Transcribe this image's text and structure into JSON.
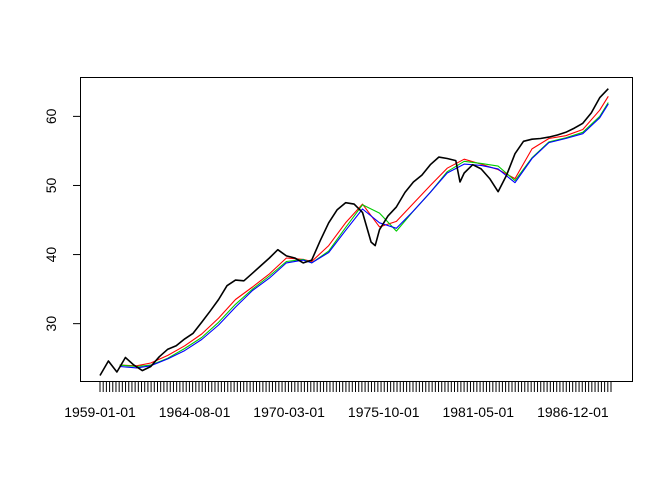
{
  "chart_data": {
    "type": "line",
    "title": "",
    "xlabel": "",
    "ylabel": "",
    "x_tick_labels": [
      "1959-01-01",
      "1964-08-01",
      "1970-03-01",
      "1975-10-01",
      "1981-05-01",
      "1986-12-01"
    ],
    "x_tick_dates": [
      "1959-01-01",
      "1964-08-01",
      "1970-03-01",
      "1975-10-01",
      "1981-05-01",
      "1986-12-01"
    ],
    "x_range": [
      "1959-01-01",
      "1989-03-01"
    ],
    "y_tick_labels": [
      "30",
      "40",
      "50",
      "60"
    ],
    "y_ticks": [
      30,
      40,
      50,
      60
    ],
    "ylim": [
      21.7,
      65.7
    ],
    "grid": false,
    "legend": "none",
    "series": [
      {
        "color": "#000000",
        "x": [
          "1959-01-01",
          "1959-07-01",
          "1960-01-01",
          "1960-07-01",
          "1961-01-01",
          "1961-07-01",
          "1962-01-01",
          "1962-07-01",
          "1963-01-01",
          "1963-07-01",
          "1964-01-01",
          "1964-07-01",
          "1965-01-01",
          "1965-07-01",
          "1966-01-01",
          "1966-07-01",
          "1967-01-01",
          "1967-07-01",
          "1968-01-01",
          "1968-07-01",
          "1969-01-01",
          "1969-07-01",
          "1970-01-01",
          "1970-07-01",
          "1971-01-01",
          "1971-07-01",
          "1972-01-01",
          "1972-07-01",
          "1973-01-01",
          "1973-07-01",
          "1974-01-01",
          "1974-07-01",
          "1975-01-01",
          "1975-04-01",
          "1975-07-01",
          "1976-01-01",
          "1976-07-01",
          "1977-01-01",
          "1977-07-01",
          "1978-01-01",
          "1978-07-01",
          "1979-01-01",
          "1979-07-01",
          "1980-01-01",
          "1980-04-01",
          "1980-07-01",
          "1981-01-01",
          "1981-07-01",
          "1982-01-01",
          "1982-07-01",
          "1983-01-01",
          "1983-07-01",
          "1984-01-01",
          "1984-07-01",
          "1985-01-01",
          "1985-07-01",
          "1986-01-01",
          "1986-07-01",
          "1987-01-01",
          "1987-07-01",
          "1988-01-01",
          "1988-07-01",
          "1989-01-01"
        ],
        "values": [
          22.5,
          24.6,
          23.0,
          25.1,
          24.0,
          23.2,
          23.8,
          25.2,
          26.3,
          26.8,
          27.8,
          28.6,
          30.2,
          31.8,
          33.5,
          35.5,
          36.3,
          36.2,
          37.3,
          38.4,
          39.5,
          40.7,
          39.8,
          39.5,
          38.8,
          39.2,
          42.0,
          44.6,
          46.5,
          47.5,
          47.3,
          46.1,
          41.8,
          41.3,
          43.6,
          45.6,
          46.9,
          49.0,
          50.5,
          51.5,
          53.0,
          54.1,
          53.9,
          53.6,
          50.5,
          51.8,
          53.0,
          52.4,
          51.0,
          49.1,
          51.5,
          54.6,
          56.4,
          56.7,
          56.8,
          57.0,
          57.3,
          57.7,
          58.3,
          59.0,
          60.5,
          62.7,
          64.0
        ]
      },
      {
        "color": "#ff0000",
        "x": [
          "1960-03-01",
          "1961-03-01",
          "1962-01-01",
          "1963-01-01",
          "1964-01-01",
          "1965-01-01",
          "1966-01-01",
          "1967-01-01",
          "1968-01-01",
          "1969-01-01",
          "1970-01-01",
          "1971-01-01",
          "1971-07-01",
          "1972-07-01",
          "1973-07-01",
          "1974-07-01",
          "1975-07-01",
          "1976-07-01",
          "1977-07-01",
          "1978-07-01",
          "1979-07-01",
          "1980-07-01",
          "1981-07-01",
          "1982-07-01",
          "1983-07-01",
          "1984-07-01",
          "1985-07-01",
          "1986-07-01",
          "1987-07-01",
          "1988-07-01",
          "1989-01-01"
        ],
        "values": [
          24.0,
          23.9,
          24.3,
          25.4,
          26.8,
          28.5,
          30.8,
          33.5,
          35.3,
          37.2,
          39.5,
          39.3,
          39.0,
          41.3,
          44.6,
          47.3,
          44.0,
          44.8,
          47.4,
          50.0,
          52.5,
          53.8,
          53.1,
          52.3,
          51.0,
          55.3,
          56.8,
          57.2,
          58.1,
          60.9,
          62.9
        ]
      },
      {
        "color": "#00cc00",
        "x": [
          "1960-03-01",
          "1961-03-01",
          "1962-01-01",
          "1963-01-01",
          "1964-01-01",
          "1965-01-01",
          "1966-01-01",
          "1967-01-01",
          "1968-01-01",
          "1969-01-01",
          "1970-01-01",
          "1971-01-01",
          "1971-07-01",
          "1972-07-01",
          "1973-07-01",
          "1974-07-01",
          "1975-07-01",
          "1976-07-01",
          "1977-07-01",
          "1978-07-01",
          "1979-07-01",
          "1980-07-01",
          "1981-07-01",
          "1982-07-01",
          "1983-07-01",
          "1984-07-01",
          "1985-07-01",
          "1986-07-01",
          "1987-07-01",
          "1988-07-01",
          "1989-01-01"
        ],
        "values": [
          24.0,
          23.8,
          24.0,
          25.0,
          26.4,
          28.0,
          30.2,
          32.8,
          35.0,
          36.9,
          39.0,
          39.3,
          38.8,
          40.5,
          43.9,
          47.2,
          46.0,
          43.4,
          46.3,
          49.0,
          52.0,
          53.5,
          53.2,
          52.8,
          50.7,
          54.0,
          56.3,
          56.9,
          57.7,
          60.0,
          62.0
        ]
      },
      {
        "color": "#0000ff",
        "x": [
          "1960-03-01",
          "1961-03-01",
          "1962-01-01",
          "1963-01-01",
          "1964-01-01",
          "1965-01-01",
          "1966-01-01",
          "1967-01-01",
          "1968-01-01",
          "1969-01-01",
          "1970-01-01",
          "1971-01-01",
          "1971-07-01",
          "1972-07-01",
          "1973-07-01",
          "1974-07-01",
          "1975-07-01",
          "1976-07-01",
          "1977-07-01",
          "1978-07-01",
          "1979-07-01",
          "1980-07-01",
          "1981-07-01",
          "1982-07-01",
          "1983-07-01",
          "1984-07-01",
          "1985-07-01",
          "1986-07-01",
          "1987-07-01",
          "1988-07-01",
          "1989-01-01"
        ],
        "values": [
          23.8,
          23.6,
          23.9,
          24.9,
          26.1,
          27.7,
          29.8,
          32.4,
          34.8,
          36.6,
          38.8,
          39.2,
          38.8,
          40.3,
          43.5,
          46.6,
          44.6,
          43.8,
          46.3,
          49.0,
          51.8,
          53.1,
          52.9,
          52.4,
          50.4,
          53.9,
          56.2,
          56.8,
          57.5,
          59.8,
          61.8
        ]
      }
    ]
  }
}
